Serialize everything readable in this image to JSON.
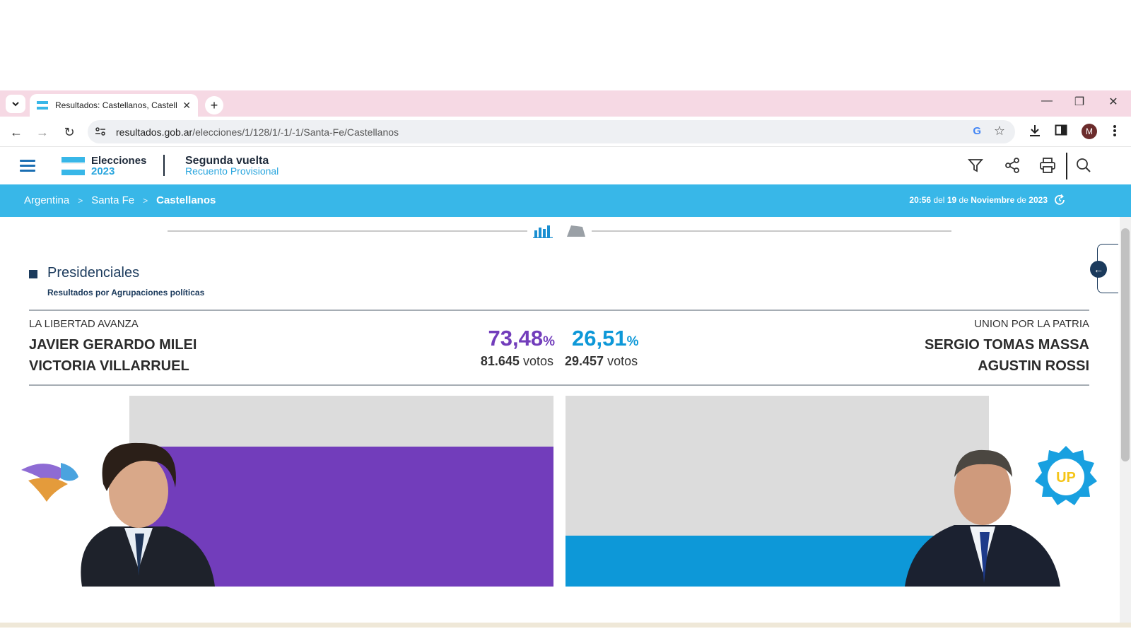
{
  "browser": {
    "tab_title": "Resultados: Castellanos, Castellanos",
    "tab_close": "✕",
    "new_tab": "+",
    "url_host": "resultados.gob.ar",
    "url_path": "/elecciones/1/128/1/-1/-1/Santa-Fe/Castellanos",
    "profile_initial": "M",
    "google_icon_letter": "G"
  },
  "header": {
    "logo_line1": "Elecciones",
    "logo_line2": "2023",
    "title": "Segunda vuelta",
    "subtitle": "Recuento Provisional"
  },
  "breadcrumb": {
    "items": [
      "Argentina",
      "Santa Fe"
    ],
    "current": "Castellanos",
    "separator": ">"
  },
  "timestamp": {
    "time": "20:56",
    "del": "del",
    "day": "19",
    "de1": "de",
    "month": "Noviembre",
    "de2": "de",
    "year": "2023"
  },
  "section": {
    "title": "Presidenciales",
    "subtitle": "Resultados por Agrupaciones políticas"
  },
  "candidates": [
    {
      "party": "LA LIBERTAD AVANZA",
      "name1": "JAVIER GERARDO MILEI",
      "name2": "VICTORIA VILLARRUEL",
      "pct": "73,48",
      "pct_sign": "%",
      "votes": "81.645",
      "votes_label": "votos",
      "color": "#723dbb",
      "share": 0.7348
    },
    {
      "party": "UNION POR LA PATRIA",
      "name1": "SERGIO TOMAS MASSA",
      "name2": "AGUSTIN ROSSI",
      "pct": "26,51",
      "pct_sign": "%",
      "votes": "29.457",
      "votes_label": "votos",
      "color": "#0d98d8",
      "share": 0.2651
    }
  ],
  "badge_text": "UP",
  "colors": {
    "brand_blue": "#38b7e8",
    "navy": "#1b3a5c",
    "tabstrip": "#f6d9e4"
  }
}
